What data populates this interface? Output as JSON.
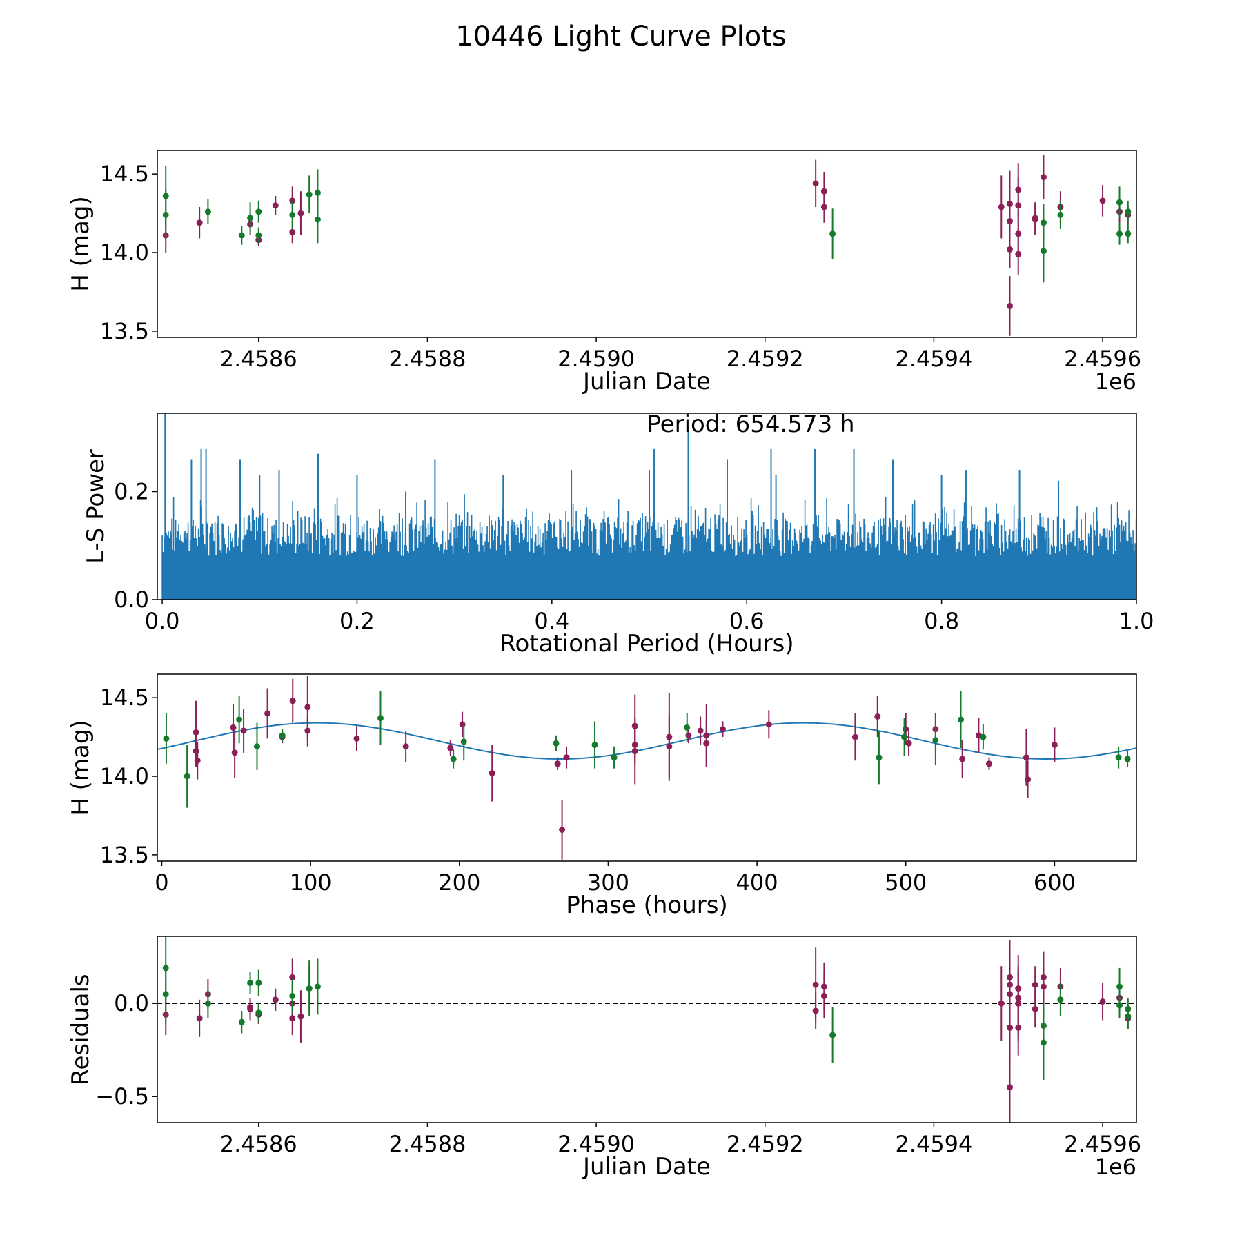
{
  "figure": {
    "title": "10446 Light Curve Plots"
  },
  "colors": {
    "purple": "#8b1f57",
    "green": "#157a2c",
    "blue": "#1f77b4",
    "black": "#000000"
  },
  "chart_data": [
    {
      "type": "scatter",
      "id": "lightcurve",
      "xlabel": "Julian Date",
      "ylabel": "H (mag)",
      "offset_label": "1e6",
      "xlim": [
        2.45848,
        2.45964
      ],
      "ylim": [
        13.46,
        14.65
      ],
      "xticks": [
        2.4586,
        2.4588,
        2.459,
        2.4592,
        2.4594,
        2.4596
      ],
      "xtick_labels": [
        "2.4586",
        "2.4588",
        "2.4590",
        "2.4592",
        "2.4594",
        "2.4596"
      ],
      "yticks": [
        13.5,
        14.0,
        14.5
      ],
      "ytick_labels": [
        "13.5",
        "14.0",
        "14.5"
      ],
      "series": [
        {
          "name": "purple",
          "color": "purple",
          "points": [
            [
              2.45849,
              14.11,
              0.11
            ],
            [
              2.45853,
              14.19,
              0.1
            ],
            [
              2.45859,
              14.18,
              0.07
            ],
            [
              2.4586,
              14.08,
              0.04
            ],
            [
              2.45862,
              14.3,
              0.06
            ],
            [
              2.45864,
              14.33,
              0.09
            ],
            [
              2.45864,
              14.13,
              0.07
            ],
            [
              2.45865,
              14.25,
              0.14
            ],
            [
              2.45926,
              14.44,
              0.15
            ],
            [
              2.45927,
              14.29,
              0.1
            ],
            [
              2.45927,
              14.39,
              0.12
            ],
            [
              2.45948,
              14.29,
              0.2
            ],
            [
              2.45949,
              14.02,
              0.12
            ],
            [
              2.45949,
              13.66,
              0.19
            ],
            [
              2.45949,
              14.31,
              0.21
            ],
            [
              2.45949,
              14.2,
              0.15
            ],
            [
              2.4595,
              14.12,
              0.14
            ],
            [
              2.4595,
              13.99,
              0.13
            ],
            [
              2.4595,
              14.3,
              0.18
            ],
            [
              2.4595,
              14.4,
              0.17
            ],
            [
              2.45952,
              14.22,
              0.1
            ],
            [
              2.45952,
              14.21,
              0.1
            ],
            [
              2.45953,
              14.48,
              0.14
            ],
            [
              2.45955,
              14.29,
              0.1
            ],
            [
              2.4596,
              14.33,
              0.1
            ],
            [
              2.45962,
              14.26,
              0.07
            ],
            [
              2.45963,
              14.24,
              0.06
            ]
          ]
        },
        {
          "name": "green",
          "color": "green",
          "points": [
            [
              2.45849,
              14.36,
              0.19
            ],
            [
              2.45849,
              14.24,
              0.16
            ],
            [
              2.45854,
              14.26,
              0.08
            ],
            [
              2.45858,
              14.11,
              0.06
            ],
            [
              2.45859,
              14.22,
              0.1
            ],
            [
              2.4586,
              14.26,
              0.07
            ],
            [
              2.4586,
              14.11,
              0.05
            ],
            [
              2.45864,
              14.24,
              0.09
            ],
            [
              2.45866,
              14.37,
              0.12
            ],
            [
              2.45867,
              14.38,
              0.15
            ],
            [
              2.45867,
              14.21,
              0.15
            ],
            [
              2.45928,
              14.12,
              0.16
            ],
            [
              2.45953,
              14.01,
              0.2
            ],
            [
              2.45953,
              14.19,
              0.12
            ],
            [
              2.45955,
              14.24,
              0.09
            ],
            [
              2.45962,
              14.32,
              0.1
            ],
            [
              2.45962,
              14.12,
              0.07
            ],
            [
              2.45963,
              14.12,
              0.06
            ],
            [
              2.45963,
              14.26,
              0.07
            ]
          ]
        }
      ]
    },
    {
      "type": "line",
      "id": "periodogram",
      "xlabel": "Rotational Period (Hours)",
      "ylabel": "L-S Power",
      "annotation": "Period: 654.573 h",
      "xlim": [
        -0.005,
        1.0
      ],
      "ylim": [
        0,
        0.345
      ],
      "xticks": [
        0.0,
        0.2,
        0.4,
        0.6,
        0.8,
        1.0
      ],
      "xtick_labels": [
        "0.0",
        "0.2",
        "0.4",
        "0.6",
        "0.8",
        "1.0"
      ],
      "yticks": [
        0.0,
        0.2
      ],
      "ytick_labels": [
        "0.0",
        "0.2"
      ],
      "typical_power_range": [
        0.08,
        0.15
      ],
      "peaks": [
        [
          0.003,
          0.345
        ],
        [
          0.01,
          0.15
        ],
        [
          0.03,
          0.26
        ],
        [
          0.04,
          0.28
        ],
        [
          0.045,
          0.28
        ],
        [
          0.08,
          0.26
        ],
        [
          0.1,
          0.23
        ],
        [
          0.12,
          0.24
        ],
        [
          0.16,
          0.27
        ],
        [
          0.2,
          0.23
        ],
        [
          0.25,
          0.2
        ],
        [
          0.28,
          0.26
        ],
        [
          0.35,
          0.23
        ],
        [
          0.42,
          0.24
        ],
        [
          0.5,
          0.24
        ],
        [
          0.505,
          0.28
        ],
        [
          0.54,
          0.32
        ],
        [
          0.58,
          0.26
        ],
        [
          0.625,
          0.28
        ],
        [
          0.63,
          0.23
        ],
        [
          0.67,
          0.28
        ],
        [
          0.71,
          0.28
        ],
        [
          0.75,
          0.26
        ],
        [
          0.8,
          0.23
        ],
        [
          0.825,
          0.24
        ],
        [
          0.88,
          0.24
        ],
        [
          0.92,
          0.22
        ],
        [
          1.0,
          0.2
        ]
      ]
    },
    {
      "type": "scatter",
      "id": "phased",
      "xlabel": "Phase (hours)",
      "ylabel": "H (mag)",
      "xlim": [
        -3,
        655
      ],
      "ylim": [
        13.46,
        14.65
      ],
      "xticks": [
        0,
        100,
        200,
        300,
        400,
        500,
        600
      ],
      "xtick_labels": [
        "0",
        "100",
        "200",
        "300",
        "400",
        "500",
        "600"
      ],
      "yticks": [
        13.5,
        14.0,
        14.5
      ],
      "ytick_labels": [
        "13.5",
        "14.0",
        "14.5"
      ],
      "model": {
        "mean": 14.225,
        "amplitude": 0.115,
        "peak_phase": 104,
        "period": 327
      },
      "series": [
        {
          "name": "purple",
          "color": "purple",
          "points": [
            [
              23,
              14.28,
              0.2
            ],
            [
              23,
              14.16,
              0.1
            ],
            [
              24,
              14.1,
              0.12
            ],
            [
              48,
              14.31,
              0.15
            ],
            [
              49,
              14.15,
              0.16
            ],
            [
              55,
              14.29,
              0.14
            ],
            [
              71,
              14.4,
              0.16
            ],
            [
              81,
              14.25,
              0.04
            ],
            [
              88,
              14.48,
              0.14
            ],
            [
              98,
              14.44,
              0.2
            ],
            [
              98,
              14.29,
              0.1
            ],
            [
              131,
              14.24,
              0.08
            ],
            [
              164,
              14.19,
              0.1
            ],
            [
              194,
              14.18,
              0.05
            ],
            [
              202,
              14.33,
              0.08
            ],
            [
              222,
              14.02,
              0.18
            ],
            [
              266,
              14.08,
              0.04
            ],
            [
              269,
              13.66,
              0.19
            ],
            [
              272,
              14.12,
              0.07
            ],
            [
              318,
              14.32,
              0.2
            ],
            [
              318,
              14.2,
              0.12
            ],
            [
              318,
              14.16,
              0.21
            ],
            [
              341,
              14.25,
              0.28
            ],
            [
              341,
              14.19,
              0.2
            ],
            [
              354,
              14.26,
              0.05
            ],
            [
              362,
              14.29,
              0.09
            ],
            [
              366,
              14.26,
              0.2
            ],
            [
              366,
              14.21,
              0.15
            ],
            [
              377,
              14.3,
              0.05
            ],
            [
              408,
              14.33,
              0.09
            ],
            [
              466,
              14.25,
              0.15
            ],
            [
              481,
              14.38,
              0.13
            ],
            [
              500,
              14.3,
              0.1
            ],
            [
              502,
              14.21,
              0.08
            ],
            [
              520,
              14.3,
              0.1
            ],
            [
              538,
              14.11,
              0.12
            ],
            [
              549,
              14.26,
              0.11
            ],
            [
              556,
              14.08,
              0.04
            ],
            [
              581,
              14.12,
              0.18
            ],
            [
              582,
              13.98,
              0.12
            ],
            [
              600,
              14.2,
              0.11
            ]
          ]
        },
        {
          "name": "green",
          "color": "green",
          "points": [
            [
              3,
              14.24,
              0.16
            ],
            [
              17,
              14.0,
              0.2
            ],
            [
              52,
              14.36,
              0.15
            ],
            [
              64,
              14.19,
              0.15
            ],
            [
              81,
              14.26,
              0.04
            ],
            [
              147,
              14.37,
              0.17
            ],
            [
              196,
              14.11,
              0.06
            ],
            [
              203,
              14.22,
              0.12
            ],
            [
              265,
              14.21,
              0.05
            ],
            [
              291,
              14.2,
              0.15
            ],
            [
              304,
              14.12,
              0.07
            ],
            [
              353,
              14.31,
              0.09
            ],
            [
              482,
              14.12,
              0.17
            ],
            [
              499,
              14.25,
              0.12
            ],
            [
              520,
              14.23,
              0.16
            ],
            [
              537,
              14.36,
              0.18
            ],
            [
              552,
              14.25,
              0.08
            ],
            [
              643,
              14.12,
              0.07
            ],
            [
              649,
              14.11,
              0.05
            ]
          ]
        }
      ]
    },
    {
      "type": "scatter",
      "id": "residuals",
      "xlabel": "Julian Date",
      "ylabel": "Residuals",
      "offset_label": "1e6",
      "xlim": [
        2.45848,
        2.45964
      ],
      "ylim": [
        -0.64,
        0.36
      ],
      "xticks": [
        2.4586,
        2.4588,
        2.459,
        2.4592,
        2.4594,
        2.4596
      ],
      "xtick_labels": [
        "2.4586",
        "2.4588",
        "2.4590",
        "2.4592",
        "2.4594",
        "2.4596"
      ],
      "yticks": [
        -0.5,
        0.0
      ],
      "ytick_labels": [
        "−0.5",
        "0.0"
      ],
      "reference_line": 0.0,
      "series": [
        {
          "name": "purple",
          "color": "purple",
          "points": [
            [
              2.45849,
              -0.06,
              0.11
            ],
            [
              2.45853,
              -0.08,
              0.1
            ],
            [
              2.45854,
              0.05,
              0.08
            ],
            [
              2.45859,
              -0.02,
              0.05
            ],
            [
              2.45859,
              -0.03,
              0.06
            ],
            [
              2.4586,
              -0.06,
              0.05
            ],
            [
              2.45862,
              0.02,
              0.06
            ],
            [
              2.45864,
              -0.08,
              0.09
            ],
            [
              2.45864,
              0.14,
              0.1
            ],
            [
              2.45864,
              0.0,
              0.09
            ],
            [
              2.45865,
              -0.07,
              0.14
            ],
            [
              2.45926,
              0.1,
              0.2
            ],
            [
              2.45926,
              -0.04,
              0.1
            ],
            [
              2.45927,
              0.04,
              0.12
            ],
            [
              2.45927,
              0.09,
              0.13
            ],
            [
              2.45948,
              0.0,
              0.2
            ],
            [
              2.45949,
              -0.13,
              0.14
            ],
            [
              2.45949,
              -0.45,
              0.19
            ],
            [
              2.45949,
              0.14,
              0.2
            ],
            [
              2.45949,
              0.05,
              0.15
            ],
            [
              2.45949,
              0.1,
              0.2
            ],
            [
              2.45949,
              -0.13,
              0.2
            ],
            [
              2.4595,
              0.0,
              0.18
            ],
            [
              2.4595,
              0.03,
              0.14
            ],
            [
              2.4595,
              -0.13,
              0.15
            ],
            [
              2.4595,
              0.08,
              0.18
            ],
            [
              2.4595,
              0.0,
              0.2
            ],
            [
              2.45952,
              0.1,
              0.1
            ],
            [
              2.45952,
              -0.03,
              0.1
            ],
            [
              2.45953,
              0.09,
              0.1
            ],
            [
              2.45953,
              0.14,
              0.14
            ],
            [
              2.45955,
              0.09,
              0.1
            ],
            [
              2.4596,
              0.01,
              0.1
            ],
            [
              2.45962,
              0.03,
              0.07
            ],
            [
              2.45963,
              -0.08,
              0.06
            ]
          ]
        },
        {
          "name": "green",
          "color": "green",
          "points": [
            [
              2.45849,
              0.19,
              0.19
            ],
            [
              2.45849,
              0.05,
              0.16
            ],
            [
              2.45854,
              0.0,
              0.08
            ],
            [
              2.45858,
              -0.1,
              0.06
            ],
            [
              2.45859,
              0.11,
              0.06
            ],
            [
              2.4586,
              0.11,
              0.07
            ],
            [
              2.4586,
              -0.05,
              0.05
            ],
            [
              2.45864,
              0.04,
              0.09
            ],
            [
              2.45866,
              0.08,
              0.12
            ],
            [
              2.45866,
              0.08,
              0.15
            ],
            [
              2.45867,
              0.09,
              0.15
            ],
            [
              2.45928,
              -0.17,
              0.15
            ],
            [
              2.45953,
              -0.21,
              0.2
            ],
            [
              2.45953,
              -0.12,
              0.12
            ],
            [
              2.45955,
              0.02,
              0.09
            ],
            [
              2.45962,
              0.09,
              0.1
            ],
            [
              2.45962,
              -0.01,
              0.07
            ],
            [
              2.45963,
              -0.03,
              0.06
            ],
            [
              2.45963,
              -0.07,
              0.07
            ]
          ]
        }
      ]
    }
  ]
}
